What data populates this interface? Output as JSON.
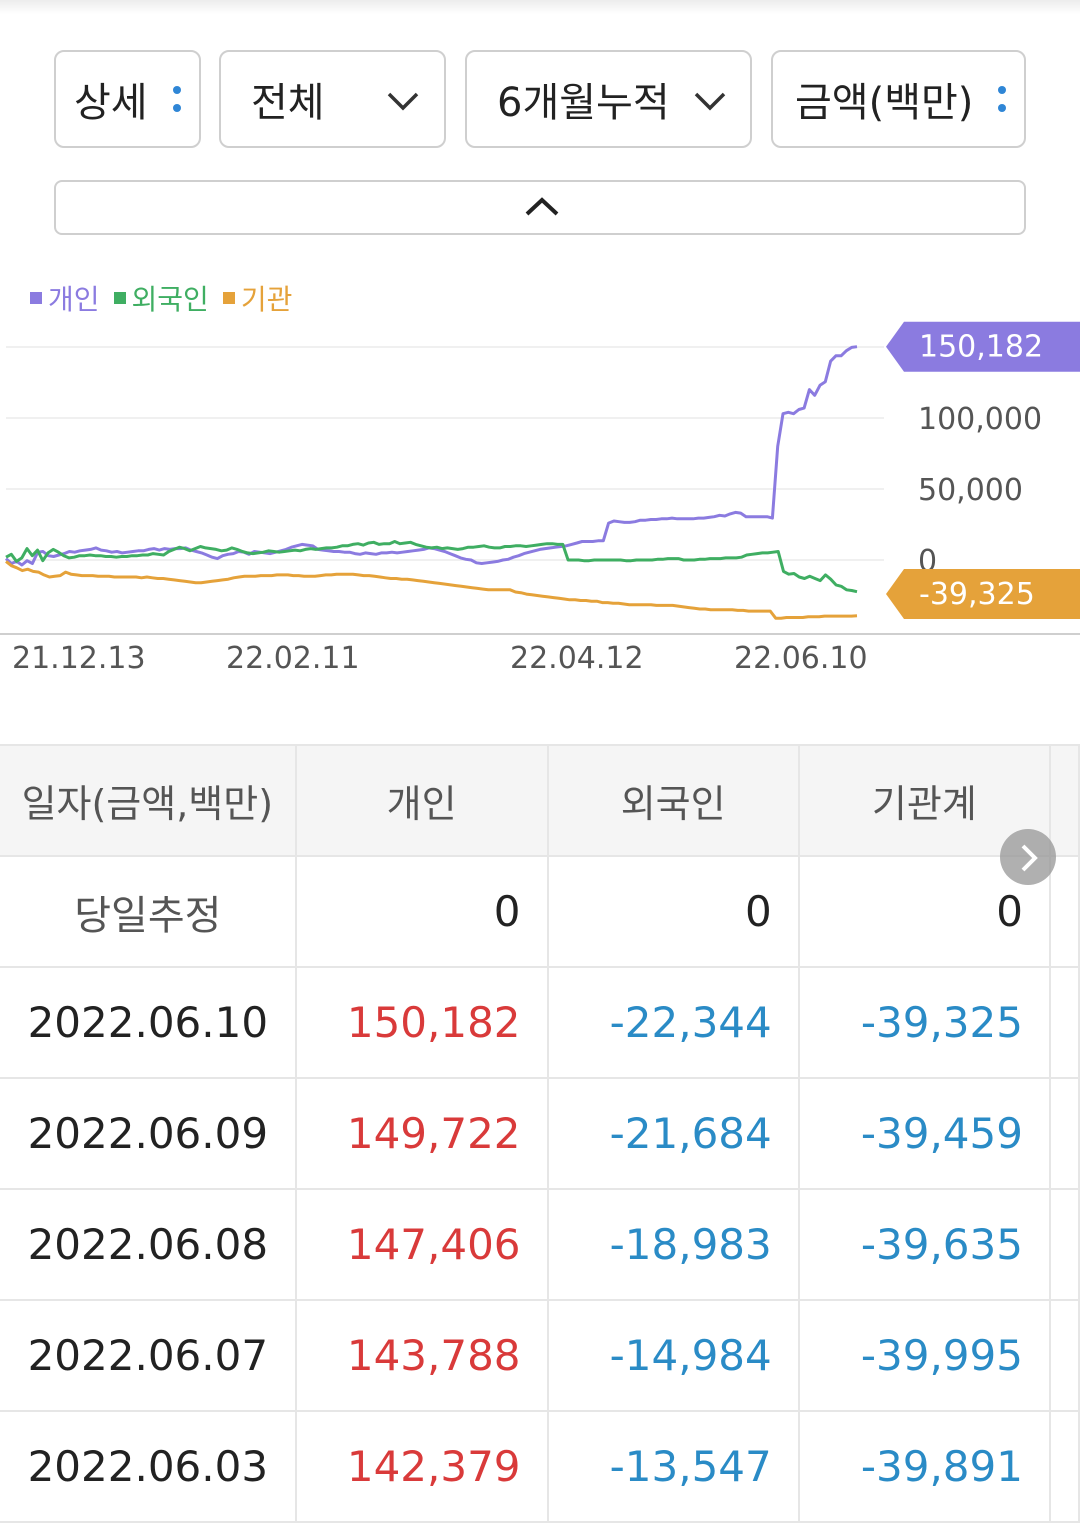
{
  "filters": {
    "detail": "상세",
    "scope": "전체",
    "period": "6개월누적",
    "unit": "금액(백만)"
  },
  "legend": [
    {
      "label": "개인",
      "color": "#8b7be0"
    },
    {
      "label": "외국인",
      "color": "#3fae62"
    },
    {
      "label": "기관",
      "color": "#e5a23a"
    }
  ],
  "chart_data": {
    "type": "line",
    "x_ticks": [
      "21.12.13",
      "22.02.11",
      "22.04.12",
      "22.06.10"
    ],
    "y_ticks": [
      "100,000",
      "50,000",
      "0"
    ],
    "ylim": [
      -50000,
      150182
    ],
    "grid": true,
    "callouts": {
      "individual_last": "150,182",
      "institution_last": "-39,325"
    },
    "series": [
      {
        "name": "개인",
        "color": "#8b7be0",
        "values": [
          1000,
          -2500,
          -1000,
          -3500,
          -500,
          -2500,
          5500,
          6000,
          3000,
          2500,
          3500,
          4500,
          6000,
          5500,
          6500,
          7000,
          7500,
          8500,
          7000,
          6500,
          5500,
          6000,
          5000,
          5500,
          6000,
          6500,
          6500,
          7500,
          8000,
          7000,
          8000,
          7500,
          8000,
          8000,
          8500,
          7000,
          6000,
          5000,
          3500,
          2000,
          1000,
          3000,
          4000,
          4500,
          6000,
          5500,
          4000,
          6000,
          5500,
          5000,
          4500,
          5500,
          6500,
          7500,
          9000,
          10000,
          11000,
          10500,
          10000,
          7500,
          7000,
          6500,
          6000,
          6000,
          5500,
          5500,
          4500,
          4000,
          5000,
          4500,
          4000,
          5000,
          5000,
          5500,
          5000,
          5500,
          6000,
          6500,
          7000,
          7500,
          8500,
          8000,
          7000,
          6000,
          4500,
          3000,
          1500,
          500,
          0,
          -2000,
          -2500,
          -2000,
          -1500,
          -1000,
          0,
          500,
          2000,
          3000,
          4500,
          5500,
          6500,
          7500,
          8000,
          8500,
          9000,
          9500,
          10000,
          11000,
          12000,
          13000,
          13000,
          13000,
          13500,
          13500,
          26000,
          27500,
          27000,
          26500,
          26500,
          27000,
          28000,
          28000,
          28500,
          28500,
          29000,
          29000,
          29500,
          29000,
          29000,
          29000,
          29000,
          29500,
          29500,
          30000,
          30500,
          31500,
          31000,
          32500,
          33500,
          33000,
          30500,
          30500,
          30500,
          30500,
          30500,
          29500,
          80000,
          103000,
          104000,
          103000,
          106000,
          107000,
          120000,
          116000,
          123000,
          125500,
          140000,
          143800,
          143800,
          147400,
          149700,
          150182
        ]
      },
      {
        "name": "외국인",
        "color": "#3fae62",
        "values": [
          2000,
          4000,
          -1000,
          1500,
          8000,
          3000,
          7000,
          -500,
          5000,
          7500,
          5500,
          3000,
          1500,
          2000,
          3000,
          3000,
          3500,
          3000,
          3000,
          2500,
          2500,
          2000,
          2500,
          2500,
          3000,
          3000,
          3500,
          3500,
          4500,
          4000,
          3500,
          6000,
          7500,
          9000,
          8000,
          6500,
          8000,
          9500,
          8500,
          8000,
          7500,
          6500,
          7000,
          8500,
          7500,
          6000,
          5000,
          4500,
          5000,
          5500,
          6500,
          6000,
          5500,
          6000,
          6500,
          7000,
          6500,
          7500,
          8000,
          7500,
          8000,
          8500,
          8500,
          9000,
          10000,
          10000,
          11000,
          11500,
          10500,
          12000,
          12500,
          11000,
          11500,
          11500,
          13000,
          11500,
          12000,
          12500,
          11000,
          10000,
          9000,
          8500,
          9000,
          8000,
          8500,
          8000,
          7500,
          8000,
          9000,
          9000,
          9500,
          10000,
          9000,
          8500,
          8500,
          9500,
          9500,
          10000,
          10000,
          9500,
          10000,
          10500,
          11000,
          11500,
          11500,
          11000,
          11000,
          0,
          0,
          0,
          -500,
          -500,
          0,
          0,
          0,
          0,
          0,
          0,
          -500,
          -500,
          0,
          0,
          0,
          0,
          500,
          500,
          1000,
          1000,
          1000,
          0,
          0,
          0,
          500,
          500,
          1000,
          1000,
          1000,
          1500,
          1500,
          1500,
          2000,
          3500,
          4000,
          4500,
          5000,
          5000,
          5500,
          6000,
          -8000,
          -10000,
          -9500,
          -12000,
          -13000,
          -11500,
          -13000,
          -14500,
          -10500,
          -13500,
          -17500,
          -18500,
          -21000,
          -21500,
          -22344
        ]
      },
      {
        "name": "기관",
        "color": "#e5a23a",
        "values": [
          -1000,
          -4000,
          -5500,
          -7500,
          -6500,
          -8000,
          -8500,
          -10500,
          -12000,
          -11500,
          -11000,
          -8500,
          -10000,
          -10500,
          -11000,
          -11000,
          -11000,
          -11500,
          -11500,
          -11500,
          -12000,
          -12000,
          -12000,
          -12000,
          -12000,
          -12500,
          -12000,
          -12500,
          -13000,
          -13000,
          -13500,
          -14000,
          -14500,
          -15000,
          -15500,
          -16000,
          -16000,
          -15500,
          -15000,
          -14500,
          -14000,
          -13500,
          -12500,
          -12000,
          -11500,
          -11500,
          -11500,
          -11000,
          -11000,
          -11000,
          -10500,
          -10500,
          -10500,
          -11000,
          -11000,
          -11500,
          -11500,
          -11500,
          -11000,
          -10500,
          -10500,
          -10000,
          -10000,
          -10000,
          -10000,
          -10500,
          -11000,
          -11000,
          -11500,
          -12000,
          -12500,
          -13000,
          -13000,
          -13500,
          -13500,
          -14000,
          -14500,
          -15000,
          -15500,
          -16000,
          -16500,
          -17000,
          -17500,
          -18000,
          -18500,
          -19000,
          -19500,
          -20000,
          -20500,
          -21000,
          -21000,
          -21000,
          -21000,
          -21000,
          -22500,
          -23000,
          -24000,
          -24500,
          -25000,
          -25500,
          -26000,
          -26500,
          -27000,
          -27500,
          -28000,
          -28000,
          -28500,
          -28500,
          -29000,
          -29000,
          -30000,
          -30000,
          -30500,
          -30500,
          -31000,
          -31500,
          -31500,
          -31500,
          -31500,
          -31500,
          -32000,
          -32000,
          -32000,
          -32000,
          -32500,
          -33000,
          -33500,
          -34000,
          -34500,
          -34500,
          -35000,
          -35000,
          -35000,
          -35000,
          -35000,
          -35500,
          -35500,
          -36000,
          -36000,
          -36000,
          -36000,
          -36000,
          -41000,
          -41000,
          -40500,
          -40500,
          -40500,
          -40500,
          -40000,
          -40000,
          -40000,
          -39500,
          -39500,
          -39500,
          -39500,
          -39500,
          -39500,
          -39325
        ]
      }
    ]
  },
  "table": {
    "headers": [
      "일자(금액,백만)",
      "개인",
      "외국인",
      "기관계"
    ],
    "estimate_row": {
      "label": "당일추정",
      "individual": "0",
      "foreign": "0",
      "institution": "0"
    },
    "rows": [
      {
        "date": "2022.06.10",
        "individual": "150,182",
        "foreign": "-22,344",
        "institution": "-39,325"
      },
      {
        "date": "2022.06.09",
        "individual": "149,722",
        "foreign": "-21,684",
        "institution": "-39,459"
      },
      {
        "date": "2022.06.08",
        "individual": "147,406",
        "foreign": "-18,983",
        "institution": "-39,635"
      },
      {
        "date": "2022.06.07",
        "individual": "143,788",
        "foreign": "-14,984",
        "institution": "-39,995"
      },
      {
        "date": "2022.06.03",
        "individual": "142,379",
        "foreign": "-13,547",
        "institution": "-39,891"
      }
    ]
  }
}
